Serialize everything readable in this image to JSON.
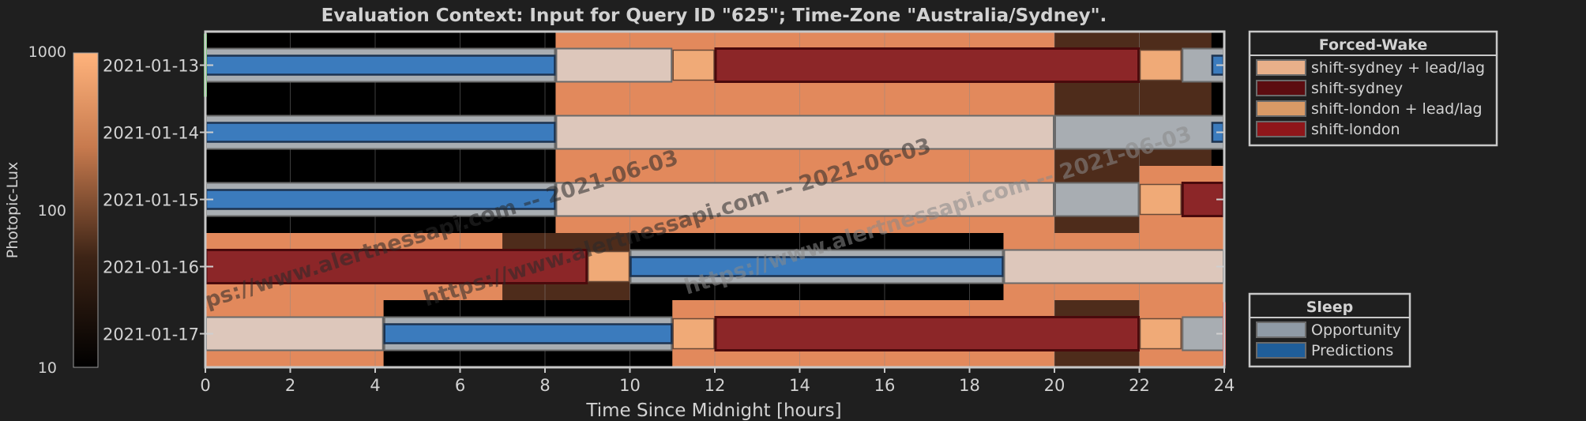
{
  "chart_data": {
    "type": "timeline",
    "title": "Evaluation Context: Input for Query ID \"625\"; Time-Zone \"Australia/Sydney\".",
    "xlabel": "Time Since Midnight [hours]",
    "xlim": [
      0,
      24
    ],
    "xticks": [
      "0",
      "2",
      "4",
      "6",
      "8",
      "10",
      "12",
      "14",
      "16",
      "18",
      "20",
      "22",
      "24"
    ],
    "rows": [
      "2021-01-13",
      "2021-01-14",
      "2021-01-15",
      "2021-01-16",
      "2021-01-17"
    ],
    "colorbar": {
      "label": "Photopic-Lux",
      "scale": "log",
      "ticks": [
        "1000",
        "100",
        "10"
      ],
      "range": [
        10,
        1000
      ]
    },
    "light_segments": [
      {
        "row": 0,
        "start": 0,
        "end": 8.25,
        "level": "dark"
      },
      {
        "row": 0,
        "start": 8.25,
        "end": 20,
        "level": "bright"
      },
      {
        "row": 0,
        "start": 20,
        "end": 23.7,
        "level": "dim"
      },
      {
        "row": 0,
        "start": 23.7,
        "end": 24,
        "level": "dark"
      },
      {
        "row": 1,
        "start": 0,
        "end": 8.25,
        "level": "dark"
      },
      {
        "row": 1,
        "start": 8.25,
        "end": 20,
        "level": "bright"
      },
      {
        "row": 1,
        "start": 20,
        "end": 23.7,
        "level": "dim"
      },
      {
        "row": 1,
        "start": 23.7,
        "end": 24,
        "level": "dark"
      },
      {
        "row": 2,
        "start": 0,
        "end": 8.25,
        "level": "dark"
      },
      {
        "row": 2,
        "start": 8.25,
        "end": 20,
        "level": "bright"
      },
      {
        "row": 2,
        "start": 20,
        "end": 22,
        "level": "dim"
      },
      {
        "row": 2,
        "start": 22,
        "end": 24,
        "level": "bright"
      },
      {
        "row": 3,
        "start": 0,
        "end": 7,
        "level": "bright"
      },
      {
        "row": 3,
        "start": 7,
        "end": 10,
        "level": "dim"
      },
      {
        "row": 3,
        "start": 10,
        "end": 18.8,
        "level": "dark"
      },
      {
        "row": 3,
        "start": 18.8,
        "end": 24,
        "level": "bright"
      },
      {
        "row": 4,
        "start": 0,
        "end": 4.2,
        "level": "bright"
      },
      {
        "row": 4,
        "start": 4.2,
        "end": 11,
        "level": "dark"
      },
      {
        "row": 4,
        "start": 11,
        "end": 20,
        "level": "bright"
      },
      {
        "row": 4,
        "start": 20,
        "end": 22,
        "level": "dim"
      },
      {
        "row": 4,
        "start": 22,
        "end": 24,
        "level": "bright"
      }
    ],
    "bars": [
      {
        "row": 0,
        "start": 0,
        "end": 8.25,
        "category": "Opportunity"
      },
      {
        "row": 0,
        "start": 0,
        "end": 8.25,
        "category": "Predictions"
      },
      {
        "row": 0,
        "start": 8.25,
        "end": 11,
        "category": "Forced-Wake (free)"
      },
      {
        "row": 0,
        "start": 11,
        "end": 12,
        "category": "shift-london + lead/lag"
      },
      {
        "row": 0,
        "start": 12,
        "end": 22,
        "category": "shift-london"
      },
      {
        "row": 0,
        "start": 22,
        "end": 23,
        "category": "shift-london + lead/lag"
      },
      {
        "row": 0,
        "start": 23,
        "end": 24,
        "category": "Opportunity"
      },
      {
        "row": 0,
        "start": 23.7,
        "end": 24,
        "category": "Predictions"
      },
      {
        "row": 1,
        "start": 0,
        "end": 8.25,
        "category": "Opportunity"
      },
      {
        "row": 1,
        "start": 0,
        "end": 8.25,
        "category": "Predictions"
      },
      {
        "row": 1,
        "start": 8.25,
        "end": 20,
        "category": "Forced-Wake (free)"
      },
      {
        "row": 1,
        "start": 20,
        "end": 24,
        "category": "Opportunity"
      },
      {
        "row": 1,
        "start": 23.7,
        "end": 24,
        "category": "Predictions"
      },
      {
        "row": 2,
        "start": 0,
        "end": 8.25,
        "category": "Opportunity"
      },
      {
        "row": 2,
        "start": 0,
        "end": 8.25,
        "category": "Predictions"
      },
      {
        "row": 2,
        "start": 8.25,
        "end": 20,
        "category": "Forced-Wake (free)"
      },
      {
        "row": 2,
        "start": 20,
        "end": 22,
        "category": "Opportunity"
      },
      {
        "row": 2,
        "start": 22,
        "end": 23,
        "category": "shift-london + lead/lag"
      },
      {
        "row": 2,
        "start": 23,
        "end": 24,
        "category": "shift-london"
      },
      {
        "row": 3,
        "start": 0,
        "end": 9,
        "category": "shift-london"
      },
      {
        "row": 3,
        "start": 9,
        "end": 10,
        "category": "shift-london + lead/lag"
      },
      {
        "row": 3,
        "start": 10,
        "end": 18.8,
        "category": "Opportunity"
      },
      {
        "row": 3,
        "start": 10,
        "end": 18.8,
        "category": "Predictions"
      },
      {
        "row": 3,
        "start": 18.8,
        "end": 24,
        "category": "Forced-Wake (free)"
      },
      {
        "row": 4,
        "start": 0,
        "end": 4.2,
        "category": "Forced-Wake (free)"
      },
      {
        "row": 4,
        "start": 4.2,
        "end": 11,
        "category": "Opportunity"
      },
      {
        "row": 4,
        "start": 4.2,
        "end": 11,
        "category": "Predictions"
      },
      {
        "row": 4,
        "start": 11,
        "end": 12,
        "category": "shift-london + lead/lag"
      },
      {
        "row": 4,
        "start": 12,
        "end": 22,
        "category": "shift-london"
      },
      {
        "row": 4,
        "start": 22,
        "end": 23,
        "category": "shift-london + lead/lag"
      },
      {
        "row": 4,
        "start": 23,
        "end": 24,
        "category": "Opportunity"
      }
    ],
    "markers": [
      {
        "row": 0,
        "x": 0,
        "color": "#36c236"
      },
      {
        "row": 4,
        "x": 24,
        "color": "#d22222"
      }
    ],
    "legends": [
      {
        "title": "Forced-Wake",
        "placement": "right-top",
        "entries": [
          {
            "label": "shift-sydney + lead/lag",
            "color": "#e8b08a"
          },
          {
            "label": "shift-sydney",
            "color": "#5c0c10"
          },
          {
            "label": "shift-london + lead/lag",
            "color": "#d99a66"
          },
          {
            "label": "shift-london",
            "color": "#8f161a"
          }
        ]
      },
      {
        "title": "Sleep",
        "placement": "right-bottom",
        "entries": [
          {
            "label": "Opportunity",
            "color": "#8f9aa5"
          },
          {
            "label": "Predictions",
            "color": "#1f5e9a"
          }
        ]
      }
    ],
    "watermarks": [
      "https://www.alertnessapi.com  --  2021-06-03"
    ],
    "colors": {
      "background": "#1f1f1f",
      "frame": "#c8c8c8",
      "light_dark": "#000000",
      "light_dim": "#4e2c1b",
      "light_bright": "#e2895c",
      "forced_wake_free": "#ddc7bb",
      "opportunity": "#a8adb2",
      "predictions": "#3b7bbd",
      "shift_london": "#8c2628",
      "shift_london_leadlag": "#f0aa77"
    }
  }
}
